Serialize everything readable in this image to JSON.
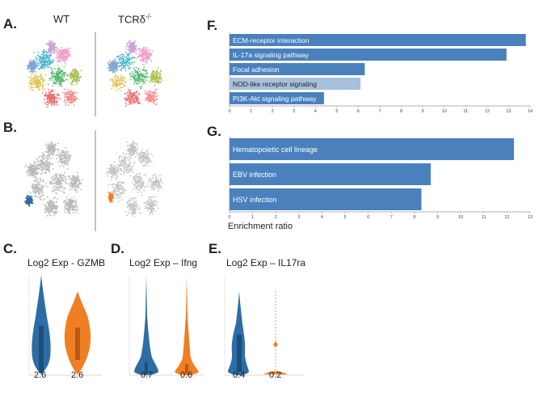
{
  "panels": {
    "A": "A.",
    "B": "B.",
    "C": "C.",
    "D": "D.",
    "E": "E.",
    "F": "F.",
    "G": "G."
  },
  "tsne": {
    "col_wt": "WT",
    "col_tcr": "TCRδ",
    "col_tcr_sup": "-/-"
  },
  "colors": {
    "blue": "#2e6da4",
    "orange": "#f07f24",
    "bar": "#4a81bd",
    "bar_light": "#a7c0dc"
  },
  "violins": [
    {
      "title": "Log2 Exp - GZMB",
      "labels": [
        "2.6",
        "2.6"
      ]
    },
    {
      "title": "Log2 Exp – Ifng",
      "labels": [
        "0.7",
        "0.6"
      ]
    },
    {
      "title": "Log2 Exp – IL17ra",
      "labels": [
        "0.4",
        "0.2"
      ]
    }
  ],
  "chart_data": [
    {
      "type": "bar",
      "orientation": "horizontal",
      "panel": "F",
      "categories": [
        "ECM-receptor interaction",
        "IL-17a signaling pathway",
        "Focal adhesion",
        "NOD-like receptor signaling",
        "PI3K-Akt signaling pathway"
      ],
      "values": [
        13.8,
        12.9,
        6.3,
        6.1,
        4.4
      ],
      "xlim": [
        0,
        14
      ],
      "ticks": [
        "0",
        "1",
        "2",
        "3",
        "4",
        "5",
        "6",
        "7",
        "8",
        "9",
        "10",
        "11",
        "12",
        "13",
        "14"
      ]
    },
    {
      "type": "bar",
      "orientation": "horizontal",
      "panel": "G",
      "categories": [
        "Hematopoietic cell lineage",
        "EBV infection",
        "HSV infection"
      ],
      "values": [
        12.3,
        8.7,
        8.3
      ],
      "xlim": [
        0,
        13
      ],
      "ticks": [
        "0",
        "1",
        "2",
        "3",
        "4",
        "5",
        "6",
        "7",
        "8",
        "9",
        "10",
        "11",
        "12",
        "13"
      ],
      "xlabel": "Enrichment ratio"
    }
  ]
}
